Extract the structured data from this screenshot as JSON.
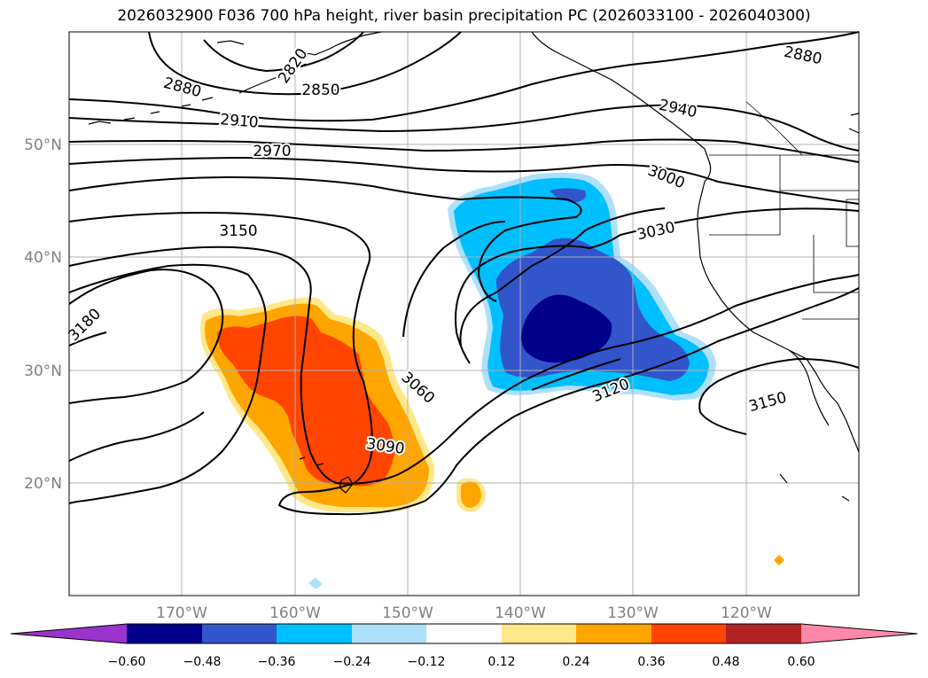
{
  "title": "2026032900 F036 700 hPa height, river basin precipitation PC (2026033100 - 2026040300)",
  "map": {
    "lon_labels": [
      "170°W",
      "160°W",
      "150°W",
      "140°W",
      "130°W",
      "120°W"
    ],
    "lat_labels": [
      "50°N",
      "40°N",
      "30°N",
      "20°N"
    ],
    "contour_labels": [
      "2820",
      "2850",
      "2880",
      "2880",
      "2910",
      "2940",
      "2970",
      "3000",
      "3030",
      "3060",
      "3090",
      "3120",
      "3150",
      "3150",
      "3180"
    ]
  },
  "colorbar": {
    "ticks": [
      "−0.60",
      "−0.48",
      "−0.36",
      "−0.24",
      "−0.12",
      "0.12",
      "0.24",
      "0.36",
      "0.48",
      "0.60"
    ],
    "colors": [
      "#9933cc",
      "#00008b",
      "#3355cc",
      "#00bfff",
      "#aee0fa",
      "#ffffff",
      "#ffe88a",
      "#ffa500",
      "#ff4500",
      "#b22222",
      "#ff88aa"
    ]
  }
}
